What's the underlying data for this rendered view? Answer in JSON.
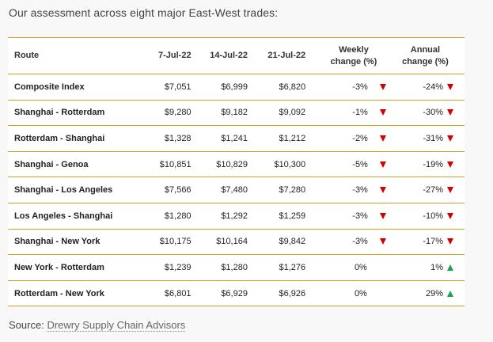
{
  "intro": "Our assessment across eight major East-West trades:",
  "table": {
    "headers": {
      "route": "Route",
      "d1": "7-Jul-22",
      "d2": "14-Jul-22",
      "d3": "21-Jul-22",
      "weekly_line1": "Weekly",
      "weekly_line2": "change (%)",
      "annual_line1": "Annual",
      "annual_line2": "change (%)"
    },
    "rows": [
      {
        "route": "Composite Index",
        "d1": "$7,051",
        "d2": "$6,999",
        "d3": "$6,820",
        "weekly": "-3%",
        "weekly_dir": "down",
        "annual": "-24%",
        "annual_dir": "down"
      },
      {
        "route": "Shanghai - Rotterdam",
        "d1": "$9,280",
        "d2": "$9,182",
        "d3": "$9,092",
        "weekly": "-1%",
        "weekly_dir": "down",
        "annual": "-30%",
        "annual_dir": "down"
      },
      {
        "route": "Rotterdam - Shanghai",
        "d1": "$1,328",
        "d2": "$1,241",
        "d3": "$1,212",
        "weekly": "-2%",
        "weekly_dir": "down",
        "annual": "-31%",
        "annual_dir": "down"
      },
      {
        "route": "Shanghai - Genoa",
        "d1": "$10,851",
        "d2": "$10,829",
        "d3": "$10,300",
        "weekly": "-5%",
        "weekly_dir": "down",
        "annual": "-19%",
        "annual_dir": "down"
      },
      {
        "route": "Shanghai - Los Angeles",
        "d1": "$7,566",
        "d2": "$7,480",
        "d3": "$7,280",
        "weekly": "-3%",
        "weekly_dir": "down",
        "annual": "-27%",
        "annual_dir": "down"
      },
      {
        "route": "Los Angeles - Shanghai",
        "d1": "$1,280",
        "d2": "$1,292",
        "d3": "$1,259",
        "weekly": "-3%",
        "weekly_dir": "down",
        "annual": "-10%",
        "annual_dir": "down"
      },
      {
        "route": "Shanghai - New York",
        "d1": "$10,175",
        "d2": "$10,164",
        "d3": "$9,842",
        "weekly": "-3%",
        "weekly_dir": "down",
        "annual": "-17%",
        "annual_dir": "down"
      },
      {
        "route": "New York - Rotterdam",
        "d1": "$1,239",
        "d2": "$1,280",
        "d3": "$1,276",
        "weekly": "0%",
        "weekly_dir": "none",
        "annual": "1%",
        "annual_dir": "up"
      },
      {
        "route": "Rotterdam - New York",
        "d1": "$6,801",
        "d2": "$6,929",
        "d3": "$6,926",
        "weekly": "0%",
        "weekly_dir": "none",
        "annual": "29%",
        "annual_dir": "up"
      }
    ]
  },
  "source": {
    "label": "Source:",
    "link_text": "Drewry Supply Chain Advisors"
  },
  "colors": {
    "rule": "#c9a227",
    "down": "#d40000",
    "up": "#1aa351"
  }
}
